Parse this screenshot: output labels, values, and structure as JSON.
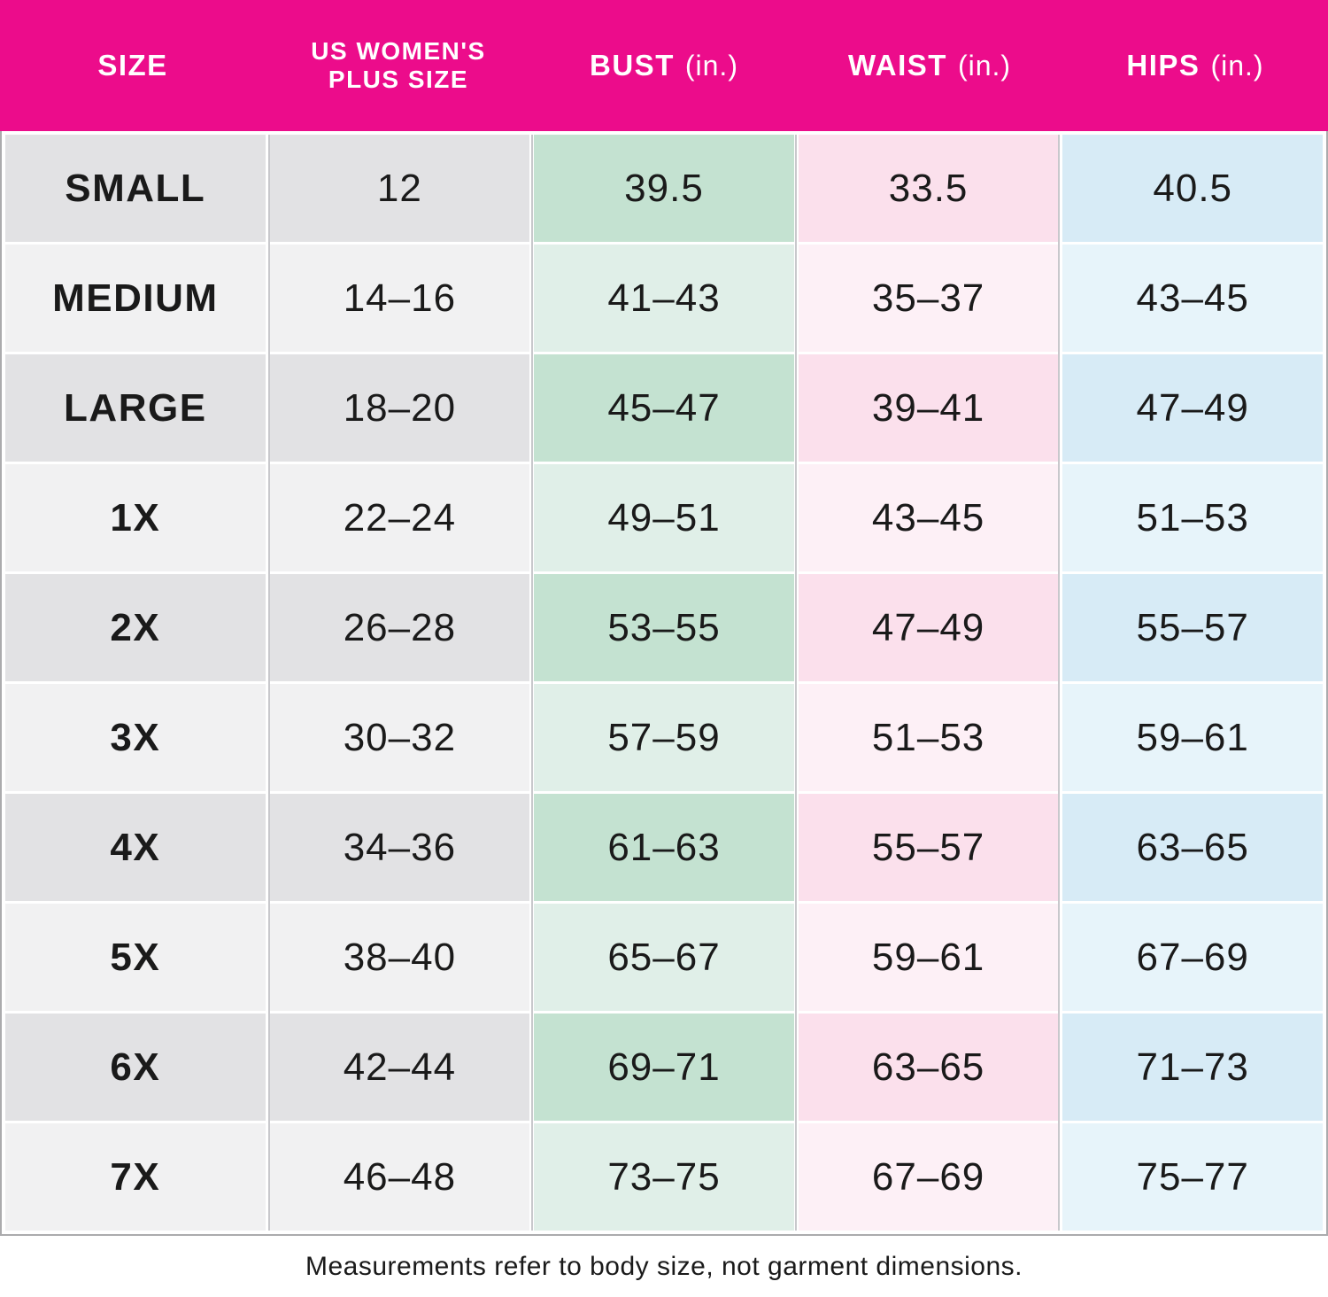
{
  "chart_data": {
    "type": "table",
    "columns": [
      "SIZE",
      "US WOMEN'S PLUS SIZE",
      "BUST (in.)",
      "WAIST (in.)",
      "HIPS (in.)"
    ],
    "rows": [
      [
        "SMALL",
        "12",
        "39.5",
        "33.5",
        "40.5"
      ],
      [
        "MEDIUM",
        "14–16",
        "41–43",
        "35–37",
        "43–45"
      ],
      [
        "LARGE",
        "18–20",
        "45–47",
        "39–41",
        "47–49"
      ],
      [
        "1X",
        "22–24",
        "49–51",
        "43–45",
        "51–53"
      ],
      [
        "2X",
        "26–28",
        "53–55",
        "47–49",
        "55–57"
      ],
      [
        "3X",
        "30–32",
        "57–59",
        "51–53",
        "59–61"
      ],
      [
        "4X",
        "34–36",
        "61–63",
        "55–57",
        "63–65"
      ],
      [
        "5X",
        "38–40",
        "65–67",
        "59–61",
        "67–69"
      ],
      [
        "6X",
        "42–44",
        "69–71",
        "63–65",
        "71–73"
      ],
      [
        "7X",
        "46–48",
        "73–75",
        "67–69",
        "75–77"
      ]
    ],
    "note": "Measurements refer to body size, not garment dimensions."
  },
  "header": {
    "columns": [
      {
        "line1": "SIZE",
        "line2": "",
        "unit": ""
      },
      {
        "line1": "US WOMEN'S",
        "line2": "PLUS SIZE",
        "unit": ""
      },
      {
        "line1": "BUST",
        "line2": "",
        "unit": "(in.)"
      },
      {
        "line1": "WAIST",
        "line2": "",
        "unit": "(in.)"
      },
      {
        "line1": "HIPS",
        "line2": "",
        "unit": "(in.)"
      }
    ]
  },
  "colors": {
    "header_bg": "#EC0C8B",
    "header_text": "#FFFFFF",
    "body_text": "#1A1A1A",
    "border": "#ABABAD",
    "separator": "#C8C8CC",
    "col_size_dark": "#E2E2E4",
    "col_size_light": "#F1F1F2",
    "col_plus_dark": "#E2E2E4",
    "col_plus_light": "#F1F1F2",
    "col_bust_dark": "#C4E2D1",
    "col_bust_light": "#E0EFE8",
    "col_waist_dark": "#FBE0EC",
    "col_waist_light": "#FDF0F6",
    "col_hips_dark": "#D7EBF6",
    "col_hips_light": "#E7F4FA"
  }
}
